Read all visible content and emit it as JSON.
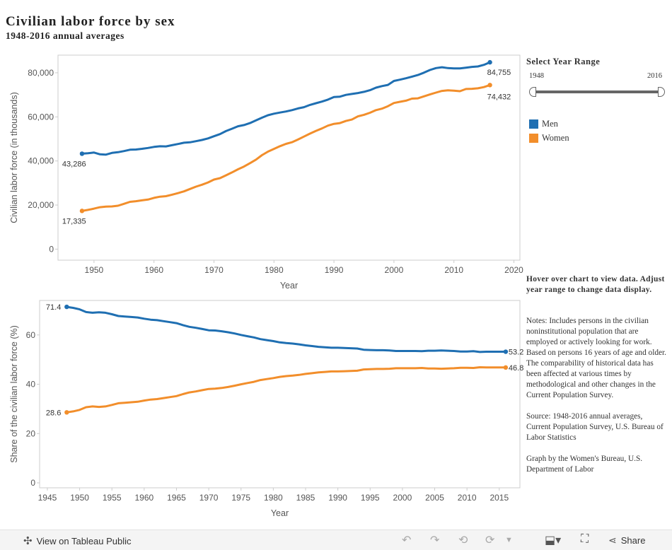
{
  "title": "Civilian labor force by sex",
  "subtitle": "1948-2016 annual averages",
  "colors": {
    "men": "#1f6fb2",
    "women": "#f28e2b",
    "grid": "#e6e6e6",
    "axis": "#cccccc"
  },
  "chart_data": [
    {
      "type": "line",
      "ylabel": "Civilian labor force (in thousands)",
      "xlabel": "Year",
      "xlim": [
        1944,
        2021
      ],
      "ylim": [
        -5000,
        88000
      ],
      "x_ticks": [
        1950,
        1960,
        1970,
        1980,
        1990,
        2000,
        2010,
        2020
      ],
      "y_ticks": [
        0,
        20000,
        40000,
        60000,
        80000
      ],
      "y_tick_labels": [
        "0",
        "20,000",
        "40,000",
        "60,000",
        "80,000"
      ],
      "x": [
        1948,
        1949,
        1950,
        1951,
        1952,
        1953,
        1954,
        1955,
        1956,
        1957,
        1958,
        1959,
        1960,
        1961,
        1962,
        1963,
        1964,
        1965,
        1966,
        1967,
        1968,
        1969,
        1970,
        1971,
        1972,
        1973,
        1974,
        1975,
        1976,
        1977,
        1978,
        1979,
        1980,
        1981,
        1982,
        1983,
        1984,
        1985,
        1986,
        1987,
        1988,
        1989,
        1990,
        1991,
        1992,
        1993,
        1994,
        1995,
        1996,
        1997,
        1998,
        1999,
        2000,
        2001,
        2002,
        2003,
        2004,
        2005,
        2006,
        2007,
        2008,
        2009,
        2010,
        2011,
        2012,
        2013,
        2014,
        2015,
        2016
      ],
      "series": [
        {
          "name": "Men",
          "color": "#1f6fb2",
          "values": [
            43286,
            43500,
            43819,
            43001,
            42869,
            43633,
            43965,
            44475,
            45091,
            45197,
            45521,
            45886,
            46388,
            46653,
            46600,
            47129,
            47679,
            48255,
            48471,
            48987,
            49533,
            50221,
            51228,
            52180,
            53555,
            54624,
            55739,
            56299,
            57174,
            58396,
            59620,
            60726,
            61453,
            61974,
            62450,
            63047,
            63835,
            64411,
            65422,
            66207,
            66927,
            67840,
            69011,
            69168,
            69964,
            70404,
            70817,
            71360,
            72087,
            73261,
            73959,
            74512,
            76280,
            76886,
            77500,
            78238,
            78980,
            80033,
            81255,
            82136,
            82520,
            82123,
            81985,
            81975,
            82327,
            82667,
            82882,
            83620,
            84755
          ],
          "first_label": "43,286",
          "last_label": "84,755"
        },
        {
          "name": "Women",
          "color": "#f28e2b",
          "values": [
            17335,
            17788,
            18389,
            19016,
            19269,
            19382,
            19678,
            20548,
            21461,
            21732,
            22118,
            22483,
            23240,
            23806,
            24014,
            24704,
            25412,
            26200,
            27299,
            28360,
            29204,
            30246,
            31543,
            32202,
            33479,
            34804,
            36211,
            37475,
            38983,
            40613,
            42631,
            44235,
            45487,
            46696,
            47755,
            48503,
            49709,
            51050,
            52413,
            53658,
            54742,
            56030,
            56829,
            57178,
            58141,
            58795,
            60239,
            60944,
            61857,
            63036,
            63714,
            64855,
            66303,
            66848,
            67363,
            68272,
            68421,
            69288,
            70173,
            70988,
            71767,
            72019,
            71904,
            71642,
            72648,
            72722,
            72954,
            73510,
            74432
          ],
          "first_label": "17,335",
          "last_label": "74,432"
        }
      ]
    },
    {
      "type": "line",
      "ylabel": "Share of the civilian labor force (%)",
      "xlabel": "Year",
      "xlim": [
        1943.8,
        2018.2
      ],
      "ylim": [
        -2,
        74
      ],
      "x_ticks": [
        1945,
        1950,
        1955,
        1960,
        1965,
        1970,
        1975,
        1980,
        1985,
        1990,
        1995,
        2000,
        2005,
        2010,
        2015
      ],
      "y_ticks": [
        0,
        20,
        40,
        60
      ],
      "x": [
        1948,
        1949,
        1950,
        1951,
        1952,
        1953,
        1954,
        1955,
        1956,
        1957,
        1958,
        1959,
        1960,
        1961,
        1962,
        1963,
        1964,
        1965,
        1966,
        1967,
        1968,
        1969,
        1970,
        1971,
        1972,
        1973,
        1974,
        1975,
        1976,
        1977,
        1978,
        1979,
        1980,
        1981,
        1982,
        1983,
        1984,
        1985,
        1986,
        1987,
        1988,
        1989,
        1990,
        1991,
        1992,
        1993,
        1994,
        1995,
        1996,
        1997,
        1998,
        1999,
        2000,
        2001,
        2002,
        2003,
        2004,
        2005,
        2006,
        2007,
        2008,
        2009,
        2010,
        2011,
        2012,
        2013,
        2014,
        2015,
        2016
      ],
      "series": [
        {
          "name": "Men",
          "color": "#1f6fb2",
          "values": [
            71.4,
            71.0,
            70.4,
            69.3,
            69.0,
            69.2,
            69.0,
            68.4,
            67.7,
            67.5,
            67.3,
            67.1,
            66.6,
            66.2,
            66.0,
            65.6,
            65.2,
            64.8,
            64.0,
            63.3,
            62.9,
            62.4,
            61.9,
            61.8,
            61.5,
            61.1,
            60.6,
            60.0,
            59.5,
            59.0,
            58.3,
            57.9,
            57.5,
            57.0,
            56.7,
            56.5,
            56.2,
            55.8,
            55.5,
            55.2,
            55.0,
            54.8,
            54.8,
            54.7,
            54.6,
            54.5,
            54.0,
            53.9,
            53.8,
            53.8,
            53.7,
            53.5,
            53.5,
            53.5,
            53.5,
            53.4,
            53.6,
            53.6,
            53.7,
            53.6,
            53.5,
            53.3,
            53.3,
            53.4,
            53.1,
            53.2,
            53.2,
            53.2,
            53.2
          ],
          "first_label": "71.4",
          "last_label": "53.2"
        },
        {
          "name": "Women",
          "color": "#f28e2b",
          "values": [
            28.6,
            29.0,
            29.6,
            30.7,
            31.0,
            30.8,
            31.0,
            31.6,
            32.3,
            32.5,
            32.7,
            32.9,
            33.4,
            33.8,
            34.0,
            34.4,
            34.8,
            35.2,
            36.0,
            36.7,
            37.1,
            37.6,
            38.1,
            38.2,
            38.5,
            38.9,
            39.4,
            40.0,
            40.5,
            41.0,
            41.7,
            42.1,
            42.5,
            43.0,
            43.3,
            43.5,
            43.8,
            44.2,
            44.5,
            44.8,
            45.0,
            45.2,
            45.2,
            45.3,
            45.4,
            45.5,
            46.0,
            46.1,
            46.2,
            46.2,
            46.3,
            46.5,
            46.5,
            46.5,
            46.5,
            46.6,
            46.4,
            46.4,
            46.3,
            46.4,
            46.5,
            46.7,
            46.7,
            46.6,
            46.9,
            46.8,
            46.8,
            46.8,
            46.8
          ],
          "first_label": "28.6",
          "last_label": "46.8"
        }
      ]
    }
  ],
  "sidebar": {
    "range_title": "Select Year Range",
    "range_min": "1948",
    "range_max": "2016",
    "legend": [
      {
        "label": "Men",
        "color": "#1f6fb2"
      },
      {
        "label": "Women",
        "color": "#f28e2b"
      }
    ],
    "hover_note": "Hover over chart to view data. Adjust year range to change data display.",
    "notes": "Notes: Includes persons in the civilian noninstitutional population that are employed or actively looking for work. Based on persons 16 years of age and older. The comparability of historical data has been affected at various times by methodological and other changes in the Current Population Survey.",
    "source": "Source: 1948-2016 annual averages, Current Population Survey, U.S. Bureau of Labor Statistics",
    "credit": "Graph by the Women's Bureau, U.S. Department of Labor"
  },
  "footer": {
    "view_label": "View on Tableau Public",
    "share_label": "Share",
    "icons": [
      "tableau-logo-icon",
      "undo-icon",
      "redo-icon",
      "revert-icon",
      "refresh-icon",
      "pause-dropdown-icon",
      "download-icon",
      "fullscreen-icon",
      "share-icon"
    ]
  }
}
